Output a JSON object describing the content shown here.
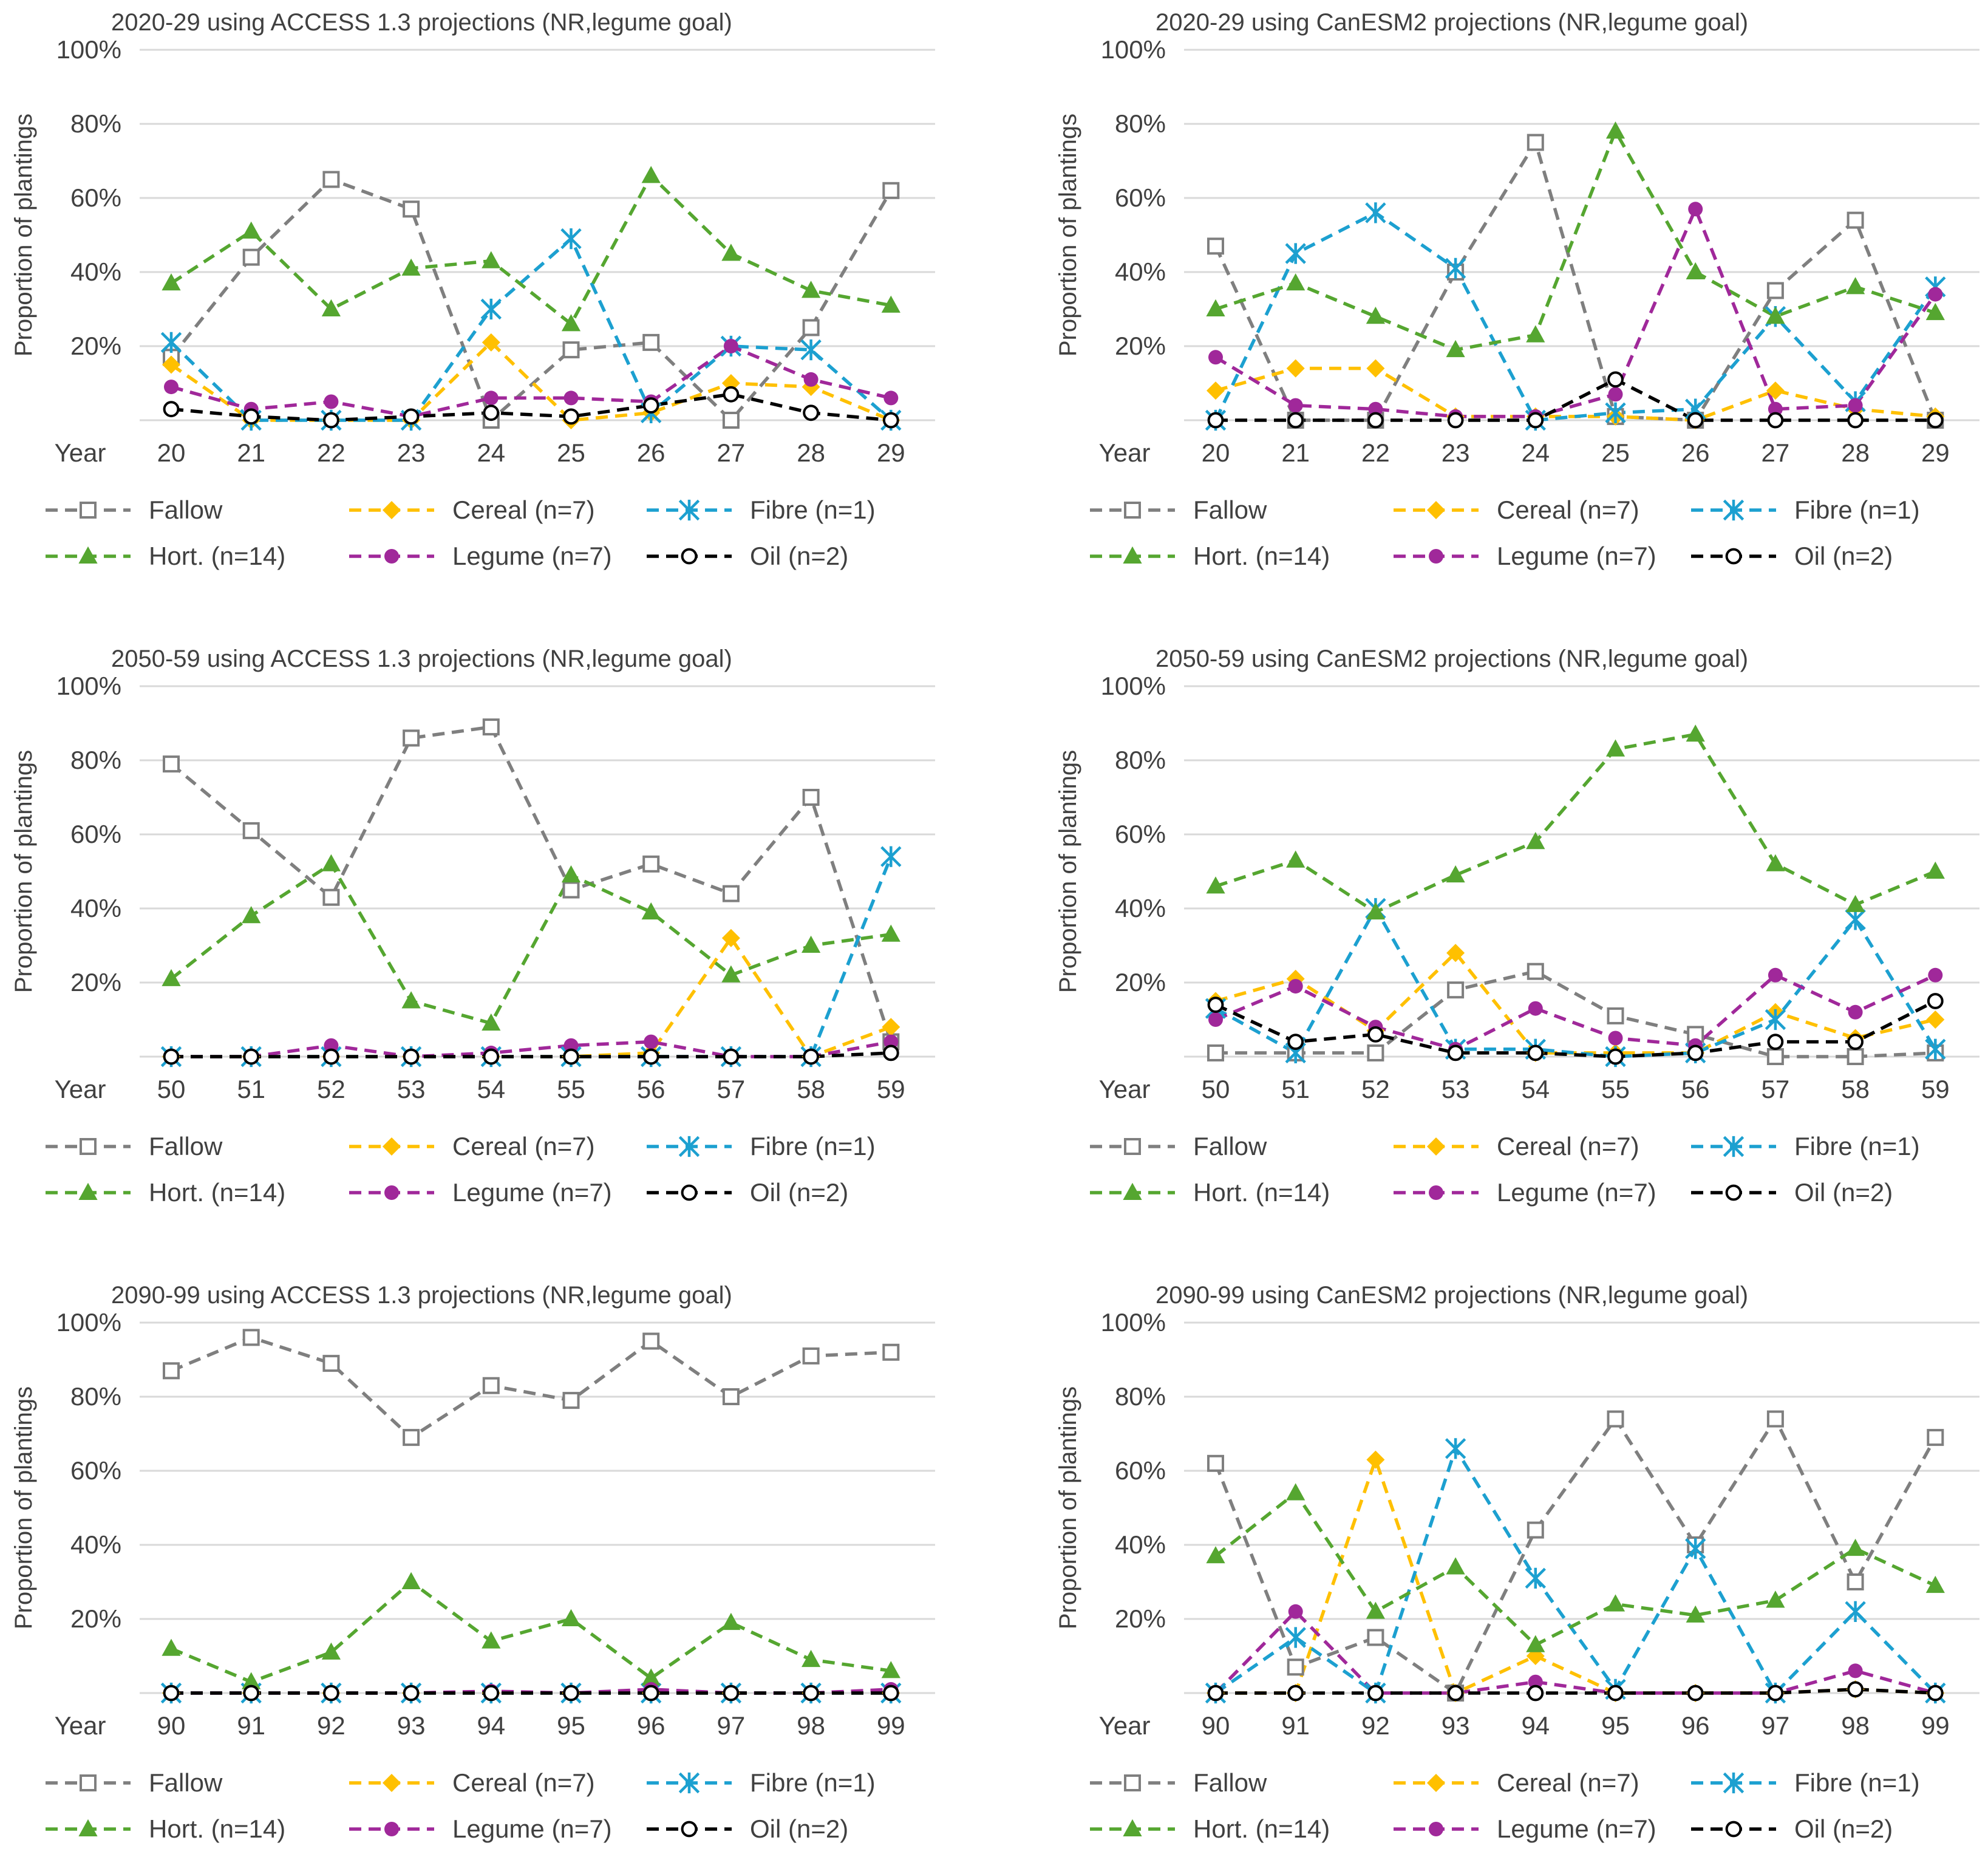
{
  "colors": {
    "fallow": "#7f7f7f",
    "cereal": "#ffc000",
    "fibre": "#1ca0d0",
    "hort": "#55a630",
    "legume": "#a0289a",
    "oil": "#000000",
    "grid": "#d9d9d9",
    "text": "#404040"
  },
  "legend": [
    {
      "key": "fallow",
      "label": "Fallow",
      "marker": "square-open"
    },
    {
      "key": "cereal",
      "label": "Cereal (n=7)",
      "marker": "diamond"
    },
    {
      "key": "fibre",
      "label": "Fibre (n=1)",
      "marker": "asterisk"
    },
    {
      "key": "hort",
      "label": "Hort. (n=14)",
      "marker": "triangle"
    },
    {
      "key": "legume",
      "label": "Legume (n=7)",
      "marker": "circle"
    },
    {
      "key": "oil",
      "label": "Oil (n=2)",
      "marker": "circle-open"
    }
  ],
  "chart_data": [
    {
      "type": "line",
      "title": "2020-29 using ACCESS 1.3 projections (NR,legume goal)",
      "ylabel": "Proportion of plantings",
      "xlabel": "Year",
      "ylim": [
        0,
        100
      ],
      "yticks": [
        "",
        "20%",
        "40%",
        "60%",
        "80%",
        "100%"
      ],
      "categories": [
        "20",
        "21",
        "22",
        "23",
        "24",
        "25",
        "26",
        "27",
        "28",
        "29"
      ],
      "series": [
        {
          "key": "fallow",
          "name": "Fallow",
          "values": [
            17,
            44,
            65,
            57,
            0,
            19,
            21,
            0,
            25,
            62
          ]
        },
        {
          "key": "cereal",
          "name": "Cereal (n=7)",
          "values": [
            15,
            0,
            0,
            0,
            21,
            0,
            2,
            10,
            9,
            0
          ]
        },
        {
          "key": "fibre",
          "name": "Fibre (n=1)",
          "values": [
            21,
            0,
            0,
            0,
            30,
            49,
            2,
            20,
            19,
            0
          ]
        },
        {
          "key": "hort",
          "name": "Hort. (n=14)",
          "values": [
            37,
            51,
            30,
            41,
            43,
            26,
            66,
            45,
            35,
            31
          ]
        },
        {
          "key": "legume",
          "name": "Legume (n=7)",
          "values": [
            9,
            3,
            5,
            1,
            6,
            6,
            5,
            20,
            11,
            6
          ]
        },
        {
          "key": "oil",
          "name": "Oil (n=2)",
          "values": [
            3,
            1,
            0,
            1,
            2,
            1,
            4,
            7,
            2,
            0
          ]
        }
      ]
    },
    {
      "type": "line",
      "title": "2020-29 using CanESM2 projections (NR,legume goal)",
      "ylabel": "Proportion of plantings",
      "xlabel": "Year",
      "ylim": [
        0,
        100
      ],
      "yticks": [
        "",
        "20%",
        "40%",
        "60%",
        "80%",
        "100%"
      ],
      "categories": [
        "20",
        "21",
        "22",
        "23",
        "24",
        "25",
        "26",
        "27",
        "28",
        "29"
      ],
      "series": [
        {
          "key": "fallow",
          "name": "Fallow",
          "values": [
            47,
            0,
            0,
            40,
            75,
            1,
            0,
            35,
            54,
            0
          ]
        },
        {
          "key": "cereal",
          "name": "Cereal (n=7)",
          "values": [
            8,
            14,
            14,
            1,
            1,
            1,
            0,
            8,
            3,
            1
          ]
        },
        {
          "key": "fibre",
          "name": "Fibre (n=1)",
          "values": [
            0,
            45,
            56,
            41,
            0,
            2,
            3,
            28,
            5,
            36
          ]
        },
        {
          "key": "hort",
          "name": "Hort. (n=14)",
          "values": [
            30,
            37,
            28,
            19,
            23,
            78,
            40,
            28,
            36,
            29
          ]
        },
        {
          "key": "legume",
          "name": "Legume (n=7)",
          "values": [
            17,
            4,
            3,
            1,
            1,
            7,
            57,
            3,
            4,
            34
          ]
        },
        {
          "key": "oil",
          "name": "Oil (n=2)",
          "values": [
            0,
            0,
            0,
            0,
            0,
            11,
            0,
            0,
            0,
            0
          ]
        }
      ]
    },
    {
      "type": "line",
      "title": "2050-59 using ACCESS 1.3 projections (NR,legume goal)",
      "ylabel": "Proportion of plantings",
      "xlabel": "Year",
      "ylim": [
        0,
        100
      ],
      "yticks": [
        "",
        "20%",
        "40%",
        "60%",
        "80%",
        "100%"
      ],
      "categories": [
        "50",
        "51",
        "52",
        "53",
        "54",
        "55",
        "56",
        "57",
        "58",
        "59"
      ],
      "series": [
        {
          "key": "fallow",
          "name": "Fallow",
          "values": [
            79,
            61,
            43,
            86,
            89,
            45,
            52,
            44,
            70,
            4
          ]
        },
        {
          "key": "cereal",
          "name": "Cereal (n=7)",
          "values": [
            0,
            0,
            0,
            0,
            0,
            0,
            1,
            32,
            0,
            8
          ]
        },
        {
          "key": "fibre",
          "name": "Fibre (n=1)",
          "values": [
            0,
            0,
            0,
            0,
            0,
            0,
            0,
            0,
            0,
            54
          ]
        },
        {
          "key": "hort",
          "name": "Hort. (n=14)",
          "values": [
            21,
            38,
            52,
            15,
            9,
            49,
            39,
            22,
            30,
            33
          ]
        },
        {
          "key": "legume",
          "name": "Legume (n=7)",
          "values": [
            0,
            0,
            3,
            0,
            1,
            3,
            4,
            0,
            0,
            4
          ]
        },
        {
          "key": "oil",
          "name": "Oil (n=2)",
          "values": [
            0,
            0,
            0,
            0,
            0,
            0,
            0,
            0,
            0,
            1
          ]
        }
      ]
    },
    {
      "type": "line",
      "title": "2050-59 using CanESM2 projections (NR,legume goal)",
      "ylabel": "Proportion of plantings",
      "xlabel": "Year",
      "ylim": [
        0,
        100
      ],
      "yticks": [
        "",
        "20%",
        "40%",
        "60%",
        "80%",
        "100%"
      ],
      "categories": [
        "50",
        "51",
        "52",
        "53",
        "54",
        "55",
        "56",
        "57",
        "58",
        "59"
      ],
      "series": [
        {
          "key": "fallow",
          "name": "Fallow",
          "values": [
            1,
            1,
            1,
            18,
            23,
            11,
            6,
            0,
            0,
            1
          ]
        },
        {
          "key": "cereal",
          "name": "Cereal (n=7)",
          "values": [
            15,
            21,
            7,
            28,
            1,
            1,
            1,
            12,
            5,
            10
          ]
        },
        {
          "key": "fibre",
          "name": "Fibre (n=1)",
          "values": [
            13,
            1,
            40,
            2,
            2,
            0,
            1,
            10,
            37,
            2
          ]
        },
        {
          "key": "hort",
          "name": "Hort. (n=14)",
          "values": [
            46,
            53,
            39,
            49,
            58,
            83,
            87,
            52,
            41,
            50
          ]
        },
        {
          "key": "legume",
          "name": "Legume (n=7)",
          "values": [
            10,
            19,
            8,
            2,
            13,
            5,
            3,
            22,
            12,
            22
          ]
        },
        {
          "key": "oil",
          "name": "Oil (n=2)",
          "values": [
            14,
            4,
            6,
            1,
            1,
            0,
            1,
            4,
            4,
            15
          ]
        }
      ]
    },
    {
      "type": "line",
      "title": "2090-99 using ACCESS 1.3 projections (NR,legume goal)",
      "ylabel": "Proportion of plantings",
      "xlabel": "Year",
      "ylim": [
        0,
        100
      ],
      "yticks": [
        "",
        "20%",
        "40%",
        "60%",
        "80%",
        "100%"
      ],
      "categories": [
        "90",
        "91",
        "92",
        "93",
        "94",
        "95",
        "96",
        "97",
        "98",
        "99"
      ],
      "series": [
        {
          "key": "fallow",
          "name": "Fallow",
          "values": [
            87,
            96,
            89,
            69,
            83,
            79,
            95,
            80,
            91,
            92
          ]
        },
        {
          "key": "cereal",
          "name": "Cereal (n=7)",
          "values": [
            0,
            0,
            0,
            0,
            0,
            0,
            0,
            0,
            0,
            0
          ]
        },
        {
          "key": "fibre",
          "name": "Fibre (n=1)",
          "values": [
            0,
            0,
            0,
            0,
            0,
            0,
            0,
            0,
            0,
            0
          ]
        },
        {
          "key": "hort",
          "name": "Hort. (n=14)",
          "values": [
            12,
            3,
            11,
            30,
            14,
            20,
            4,
            19,
            9,
            6
          ]
        },
        {
          "key": "legume",
          "name": "Legume (n=7)",
          "values": [
            0,
            0,
            0,
            0,
            0.5,
            0,
            1,
            0,
            0,
            1
          ]
        },
        {
          "key": "oil",
          "name": "Oil (n=2)",
          "values": [
            0,
            0,
            0,
            0,
            0,
            0,
            0,
            0,
            0,
            0
          ]
        }
      ]
    },
    {
      "type": "line",
      "title": "2090-99 using CanESM2 projections (NR,legume goal)",
      "ylabel": "Proportion of plantings",
      "xlabel": "Year",
      "ylim": [
        0,
        100
      ],
      "yticks": [
        "",
        "20%",
        "40%",
        "60%",
        "80%",
        "100%"
      ],
      "categories": [
        "90",
        "91",
        "92",
        "93",
        "94",
        "95",
        "96",
        "97",
        "98",
        "99"
      ],
      "series": [
        {
          "key": "fallow",
          "name": "Fallow",
          "values": [
            62,
            7,
            15,
            0,
            44,
            74,
            40,
            74,
            30,
            69
          ]
        },
        {
          "key": "cereal",
          "name": "Cereal (n=7)",
          "values": [
            0,
            0,
            63,
            0,
            10,
            0,
            0,
            0,
            1,
            0
          ]
        },
        {
          "key": "fibre",
          "name": "Fibre (n=1)",
          "values": [
            0,
            15,
            0,
            66,
            31,
            1,
            39,
            0,
            22,
            0
          ]
        },
        {
          "key": "hort",
          "name": "Hort. (n=14)",
          "values": [
            37,
            54,
            22,
            34,
            13,
            24,
            21,
            25,
            39,
            29
          ]
        },
        {
          "key": "legume",
          "name": "Legume (n=7)",
          "values": [
            0,
            22,
            0,
            0,
            3,
            0,
            0,
            0,
            6,
            0
          ]
        },
        {
          "key": "oil",
          "name": "Oil (n=2)",
          "values": [
            0,
            0,
            0,
            0,
            0,
            0,
            0,
            0,
            1,
            0
          ]
        }
      ]
    }
  ]
}
